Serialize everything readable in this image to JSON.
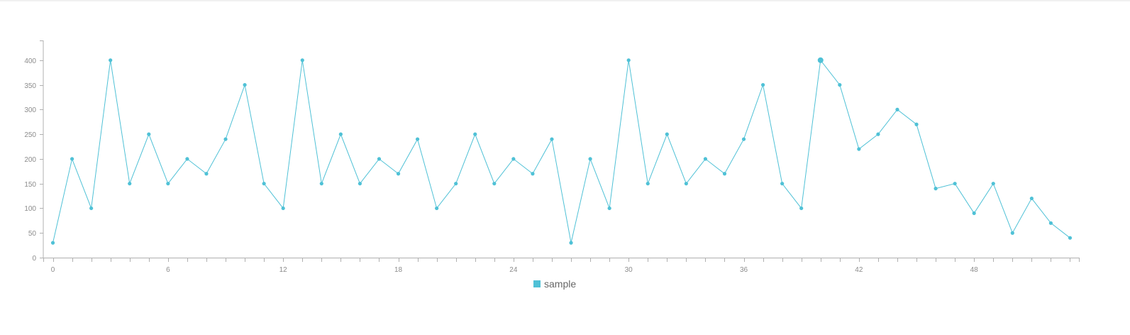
{
  "chart_data": {
    "type": "line",
    "x": [
      0,
      1,
      2,
      3,
      4,
      5,
      6,
      7,
      8,
      9,
      10,
      11,
      12,
      13,
      14,
      15,
      16,
      17,
      18,
      19,
      20,
      21,
      22,
      23,
      24,
      25,
      26,
      27,
      28,
      29,
      30,
      31,
      32,
      33,
      34,
      35,
      36,
      37,
      38,
      39,
      40,
      41,
      42,
      43,
      44,
      45,
      46,
      47,
      48,
      49,
      50,
      51,
      52,
      53
    ],
    "series": [
      {
        "name": "sample",
        "values": [
          30,
          200,
          100,
          400,
          150,
          250,
          150,
          200,
          170,
          240,
          350,
          150,
          100,
          400,
          150,
          250,
          150,
          200,
          170,
          240,
          100,
          150,
          250,
          150,
          200,
          170,
          240,
          30,
          200,
          100,
          400,
          150,
          250,
          150,
          200,
          170,
          240,
          350,
          150,
          100,
          400,
          350,
          220,
          250,
          300,
          270,
          140,
          150,
          90,
          150,
          50,
          120,
          70,
          40
        ]
      }
    ],
    "highlighted_index": 40,
    "xticks": [
      0,
      6,
      12,
      18,
      24,
      30,
      36,
      42,
      48
    ],
    "yticks": [
      0,
      50,
      100,
      150,
      200,
      250,
      300,
      350,
      400
    ],
    "xlim": [
      -0.5,
      53.5
    ],
    "ylim": [
      0,
      440
    ],
    "title": "",
    "xlabel": "",
    "ylabel": "",
    "grid": false,
    "legend_position": "bottom-center",
    "colors": {
      "series": "#4fc1d6",
      "axis": "#b0b0b0",
      "tick_text": "#8c8c8c",
      "legend_text": "#666666"
    }
  }
}
